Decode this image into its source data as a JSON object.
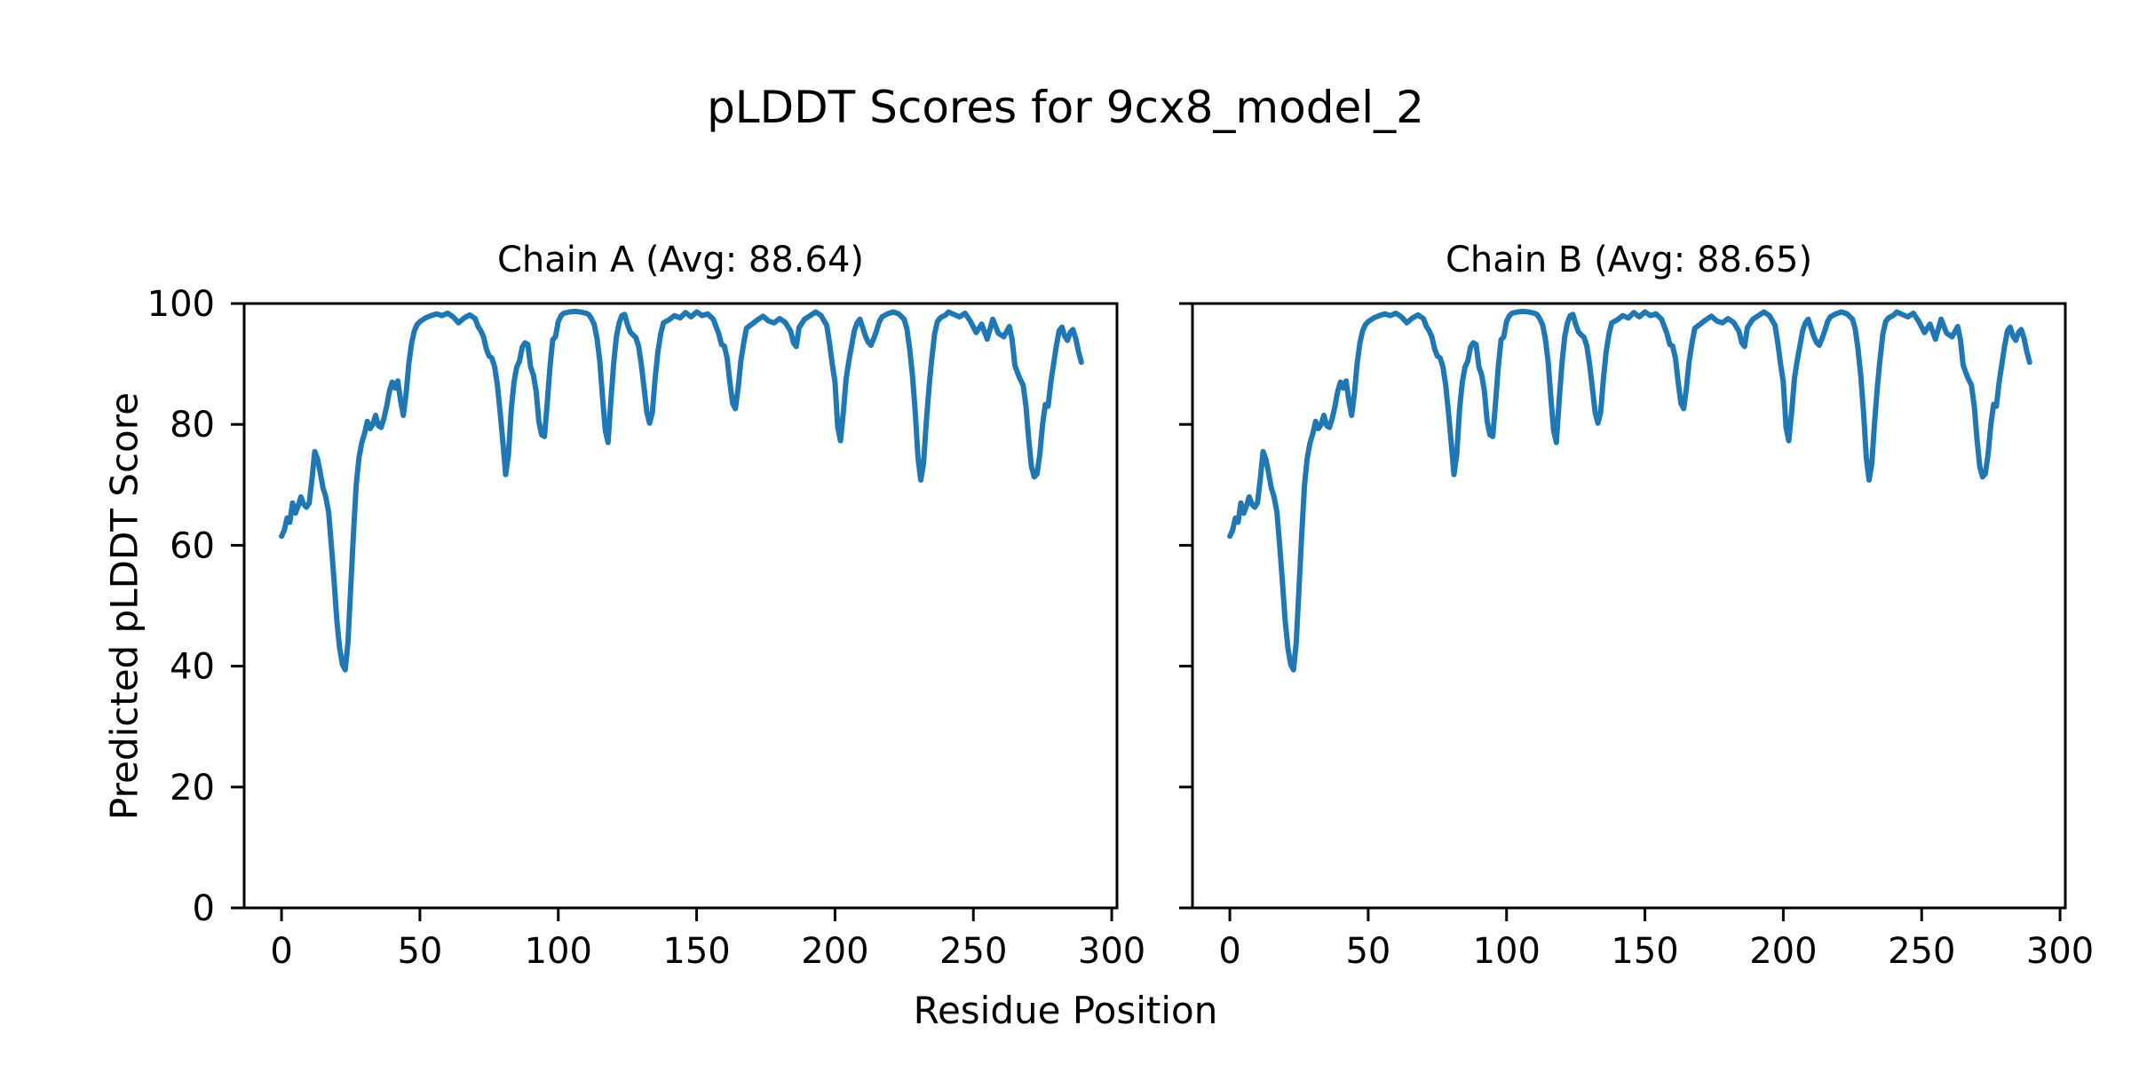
{
  "chart_data": {
    "type": "line",
    "suptitle": "pLDDT Scores for 9cx8_model_2",
    "xlabel": "Residue Position",
    "ylabel": "Predicted pLDDT Score",
    "xlim": [
      -13.5,
      301.9
    ],
    "ylim": [
      0,
      100
    ],
    "xticks": [
      0,
      50,
      100,
      150,
      200,
      250,
      300
    ],
    "yticks": [
      0,
      20,
      40,
      60,
      80,
      100
    ],
    "grid": false,
    "legend": false,
    "line_color": "#1f77b4",
    "text_color": "#000000",
    "background_color": "#ffffff",
    "subplots": [
      {
        "title": "Chain A (Avg: 88.64)",
        "chain": "A",
        "avg": 88.64
      },
      {
        "title": "Chain B (Avg: 88.65)",
        "chain": "B",
        "avg": 88.65
      }
    ],
    "points_shared_by_both_chains": true,
    "points": [
      [
        0,
        61.5
      ],
      [
        1,
        62.5
      ],
      [
        2,
        64.5
      ],
      [
        3,
        63.8
      ],
      [
        4,
        67
      ],
      [
        5,
        65.3
      ],
      [
        6,
        66.5
      ],
      [
        7,
        68
      ],
      [
        8,
        66.8
      ],
      [
        9,
        66.3
      ],
      [
        10,
        67
      ],
      [
        11,
        71
      ],
      [
        12,
        75.5
      ],
      [
        13,
        74.3
      ],
      [
        14,
        72
      ],
      [
        15,
        69.5
      ],
      [
        16,
        68
      ],
      [
        17,
        65.5
      ],
      [
        18,
        60
      ],
      [
        19,
        54
      ],
      [
        20,
        47.5
      ],
      [
        21,
        43
      ],
      [
        22,
        40.3
      ],
      [
        23,
        39.4
      ],
      [
        24,
        44
      ],
      [
        25,
        53
      ],
      [
        26,
        62
      ],
      [
        27,
        70
      ],
      [
        28,
        74.5
      ],
      [
        29,
        77
      ],
      [
        30,
        78.5
      ],
      [
        31,
        80.5
      ],
      [
        32,
        79.3
      ],
      [
        33,
        80
      ],
      [
        34,
        81.5
      ],
      [
        35,
        79.8
      ],
      [
        36,
        79.5
      ],
      [
        37,
        81
      ],
      [
        38,
        83
      ],
      [
        39,
        85.5
      ],
      [
        40,
        87
      ],
      [
        41,
        86
      ],
      [
        42,
        87.2
      ],
      [
        43,
        84
      ],
      [
        44,
        81.5
      ],
      [
        45,
        85
      ],
      [
        46,
        90
      ],
      [
        47,
        93.5
      ],
      [
        48,
        95.5
      ],
      [
        49,
        96.5
      ],
      [
        50,
        97
      ],
      [
        52,
        97.6
      ],
      [
        54,
        98
      ],
      [
        56,
        98.3
      ],
      [
        58,
        98
      ],
      [
        60,
        98.4
      ],
      [
        62,
        97.8
      ],
      [
        64,
        96.8
      ],
      [
        66,
        97.6
      ],
      [
        68,
        98.1
      ],
      [
        70,
        97.5
      ],
      [
        71,
        96.2
      ],
      [
        72,
        95.5
      ],
      [
        73,
        94.5
      ],
      [
        74,
        92.5
      ],
      [
        75,
        91.3
      ],
      [
        76,
        91
      ],
      [
        77,
        89.5
      ],
      [
        78,
        86.5
      ],
      [
        79,
        82
      ],
      [
        80,
        77
      ],
      [
        81,
        71.7
      ],
      [
        82,
        75
      ],
      [
        83,
        82.5
      ],
      [
        84,
        87
      ],
      [
        85,
        89.5
      ],
      [
        86,
        90.5
      ],
      [
        87,
        92.8
      ],
      [
        88,
        93.5
      ],
      [
        89,
        93.2
      ],
      [
        90,
        89.5
      ],
      [
        91,
        88.2
      ],
      [
        92,
        85.5
      ],
      [
        93,
        80.5
      ],
      [
        94,
        78.3
      ],
      [
        95,
        78
      ],
      [
        96,
        83.5
      ],
      [
        97,
        89.5
      ],
      [
        98,
        94
      ],
      [
        99,
        94.5
      ],
      [
        100,
        97
      ],
      [
        101,
        98
      ],
      [
        102,
        98.4
      ],
      [
        104,
        98.6
      ],
      [
        106,
        98.7
      ],
      [
        108,
        98.6
      ],
      [
        110,
        98.4
      ],
      [
        111,
        98.2
      ],
      [
        112,
        97.5
      ],
      [
        113,
        96.5
      ],
      [
        114,
        94.2
      ],
      [
        115,
        90.5
      ],
      [
        116,
        84.5
      ],
      [
        117,
        79
      ],
      [
        118,
        77
      ],
      [
        119,
        84
      ],
      [
        120,
        90
      ],
      [
        121,
        94.5
      ],
      [
        122,
        96.8
      ],
      [
        123,
        98
      ],
      [
        124,
        98.2
      ],
      [
        125,
        96.5
      ],
      [
        126,
        95.3
      ],
      [
        127,
        94.8
      ],
      [
        128,
        94.4
      ],
      [
        129,
        93
      ],
      [
        130,
        90
      ],
      [
        131,
        86
      ],
      [
        132,
        82
      ],
      [
        133,
        80.2
      ],
      [
        134,
        82
      ],
      [
        135,
        87.5
      ],
      [
        136,
        92
      ],
      [
        137,
        95
      ],
      [
        138,
        96.8
      ],
      [
        140,
        97.3
      ],
      [
        142,
        98
      ],
      [
        144,
        97.6
      ],
      [
        146,
        98.5
      ],
      [
        148,
        97.8
      ],
      [
        150,
        98.6
      ],
      [
        152,
        98
      ],
      [
        154,
        98.3
      ],
      [
        156,
        97.4
      ],
      [
        158,
        95
      ],
      [
        159,
        93.2
      ],
      [
        160,
        93
      ],
      [
        161,
        91
      ],
      [
        162,
        87
      ],
      [
        163,
        83.5
      ],
      [
        164,
        82.6
      ],
      [
        165,
        86
      ],
      [
        166,
        90.5
      ],
      [
        167,
        93.5
      ],
      [
        168,
        95.9
      ],
      [
        170,
        96.6
      ],
      [
        172,
        97.3
      ],
      [
        174,
        97.9
      ],
      [
        176,
        97.1
      ],
      [
        178,
        96.8
      ],
      [
        180,
        97.5
      ],
      [
        182,
        96.9
      ],
      [
        184,
        95.4
      ],
      [
        185,
        93.5
      ],
      [
        186,
        92.9
      ],
      [
        187,
        96
      ],
      [
        189,
        97.4
      ],
      [
        191,
        98
      ],
      [
        193,
        98.6
      ],
      [
        195,
        98
      ],
      [
        196,
        97.2
      ],
      [
        197,
        96.4
      ],
      [
        198,
        93.5
      ],
      [
        199,
        90
      ],
      [
        200,
        87
      ],
      [
        201,
        79.5
      ],
      [
        202,
        77.3
      ],
      [
        203,
        82
      ],
      [
        204,
        87.5
      ],
      [
        205,
        90.5
      ],
      [
        206,
        93
      ],
      [
        207,
        95.5
      ],
      [
        208,
        96.8
      ],
      [
        209,
        97.4
      ],
      [
        210,
        96
      ],
      [
        211,
        94.6
      ],
      [
        212,
        93.6
      ],
      [
        213,
        93.1
      ],
      [
        214,
        94.2
      ],
      [
        215,
        95.5
      ],
      [
        216,
        97
      ],
      [
        217,
        97.8
      ],
      [
        219,
        98.3
      ],
      [
        221,
        98.6
      ],
      [
        223,
        98.3
      ],
      [
        225,
        97.4
      ],
      [
        226,
        95.8
      ],
      [
        227,
        92.4
      ],
      [
        228,
        88
      ],
      [
        229,
        82
      ],
      [
        230,
        74.5
      ],
      [
        231,
        70.8
      ],
      [
        232,
        73.5
      ],
      [
        233,
        80.5
      ],
      [
        234,
        86.3
      ],
      [
        235,
        91
      ],
      [
        236,
        95
      ],
      [
        237,
        97
      ],
      [
        238,
        97.6
      ],
      [
        240,
        98.1
      ],
      [
        241,
        98.6
      ],
      [
        243,
        98.2
      ],
      [
        245,
        97.8
      ],
      [
        247,
        98.4
      ],
      [
        249,
        97
      ],
      [
        251,
        95.2
      ],
      [
        253,
        96.6
      ],
      [
        255,
        94.1
      ],
      [
        257,
        97.4
      ],
      [
        259,
        95.1
      ],
      [
        261,
        94.5
      ],
      [
        263,
        96.2
      ],
      [
        264,
        94
      ],
      [
        265,
        89.8
      ],
      [
        266,
        88.5
      ],
      [
        267,
        87.4
      ],
      [
        268,
        86.5
      ],
      [
        269,
        83
      ],
      [
        270,
        77.5
      ],
      [
        271,
        73
      ],
      [
        272,
        71.3
      ],
      [
        273,
        71.8
      ],
      [
        274,
        75
      ],
      [
        275,
        80
      ],
      [
        276,
        83.3
      ],
      [
        277,
        83
      ],
      [
        278,
        87
      ],
      [
        279,
        90
      ],
      [
        280,
        93
      ],
      [
        281,
        95.5
      ],
      [
        282,
        96.1
      ],
      [
        283,
        94.6
      ],
      [
        284,
        93.9
      ],
      [
        285,
        95.2
      ],
      [
        286,
        95.7
      ],
      [
        287,
        94.2
      ],
      [
        288,
        92
      ],
      [
        289,
        90.3
      ]
    ]
  }
}
